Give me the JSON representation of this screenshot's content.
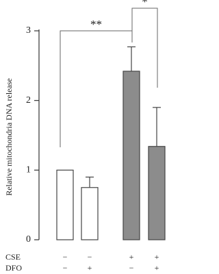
{
  "chart_data": {
    "type": "bar",
    "ylabel": "Relative mitochondria DNA release",
    "categories": [
      null,
      null,
      null,
      null
    ],
    "values": [
      1.0,
      0.75,
      2.42,
      1.34
    ],
    "errors": [
      null,
      0.15,
      0.35,
      0.56
    ],
    "colors": [
      "#ffffff",
      "#ffffff",
      "#8c8c8c",
      "#8c8c8c"
    ],
    "ylim": [
      0,
      3
    ],
    "yticks": [
      0,
      1,
      2,
      3
    ],
    "annotations": [
      "**",
      "*"
    ],
    "conditions": [
      {
        "label": "CSE",
        "signs": [
          "−",
          "−",
          "+",
          "+"
        ]
      },
      {
        "label": "DFO",
        "signs": [
          "−",
          "+",
          "−",
          "+"
        ]
      }
    ]
  }
}
